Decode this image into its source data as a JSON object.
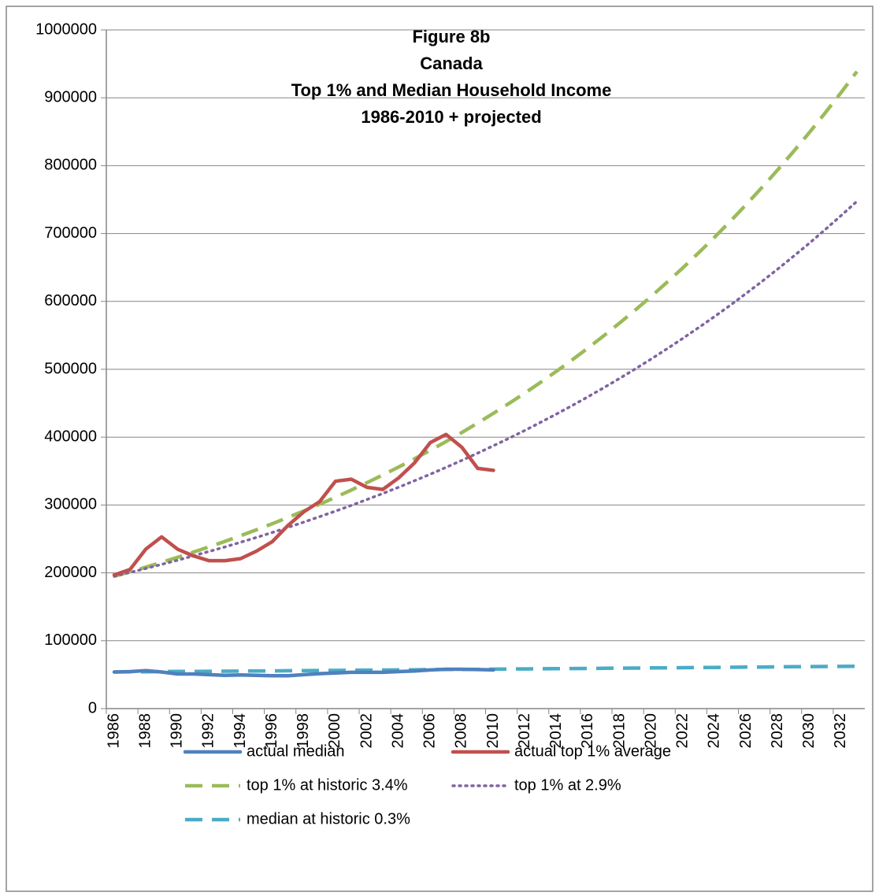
{
  "chart_data": {
    "type": "line",
    "title": [
      "Figure 8b",
      "Canada",
      "Top 1% and Median Household Income",
      "1986-2010 + projected"
    ],
    "categories": [
      "1986",
      null,
      "1988",
      null,
      "1990",
      null,
      "1992",
      null,
      "1994",
      null,
      "1996",
      null,
      "1998",
      null,
      "2000",
      null,
      "2002",
      null,
      "2004",
      null,
      "2006",
      null,
      "2008",
      null,
      "2010",
      null,
      "2012",
      null,
      "2014",
      null,
      "2016",
      null,
      "2018",
      null,
      "2020",
      null,
      "2022",
      null,
      "2024",
      null,
      "2026",
      null,
      "2028",
      null,
      "2030",
      null,
      "2032",
      null
    ],
    "ylim": [
      0,
      1000000
    ],
    "yticks": [
      0,
      100000,
      200000,
      300000,
      400000,
      500000,
      600000,
      700000,
      800000,
      900000,
      1000000
    ],
    "grid": true,
    "legend": "bottom",
    "series": [
      {
        "name": "actual median",
        "color": "#4f81bd",
        "style": "solid",
        "values": [
          54000,
          54500,
          56000,
          54000,
          51000,
          51000,
          50000,
          49000,
          49500,
          49000,
          48500,
          48500,
          50000,
          51500,
          52500,
          53500,
          53500,
          53500,
          54500,
          55500,
          57000,
          58000,
          58000,
          57500,
          57000,
          null,
          null,
          null,
          null,
          null,
          null,
          null,
          null,
          null,
          null,
          null,
          null,
          null,
          null,
          null,
          null,
          null,
          null,
          null,
          null,
          null,
          null,
          null
        ]
      },
      {
        "name": "actual top 1% average",
        "color": "#c0504d",
        "style": "solid",
        "values": [
          197000,
          205000,
          235000,
          253000,
          235000,
          225000,
          218000,
          218000,
          221000,
          232000,
          246000,
          270000,
          290000,
          305000,
          335000,
          338000,
          326000,
          323000,
          340000,
          362000,
          392000,
          404000,
          385000,
          354000,
          351000,
          null,
          null,
          null,
          null,
          null,
          null,
          null,
          null,
          null,
          null,
          null,
          null,
          null,
          null,
          null,
          null,
          null,
          null,
          null,
          null,
          null,
          null,
          null
        ]
      },
      {
        "name": "top 1% at historic 3.4%",
        "color": "#9bbb59",
        "style": "dash",
        "values": [
          195000,
          201600,
          208500,
          215600,
          222900,
          230500,
          238300,
          246400,
          254800,
          263500,
          272400,
          281700,
          291300,
          301200,
          311400,
          322000,
          332900,
          344300,
          356000,
          368100,
          380600,
          393500,
          406900,
          420800,
          435100,
          449900,
          465200,
          481000,
          497300,
          514200,
          531700,
          549800,
          568500,
          587800,
          607800,
          628500,
          649800,
          671900,
          694800,
          718400,
          742800,
          768100,
          794200,
          821200,
          849100,
          878000,
          907800,
          938700
        ]
      },
      {
        "name": "top 1% at 2.9%",
        "color": "#8064a2",
        "style": "dot",
        "values": [
          195000,
          200700,
          206500,
          212500,
          218600,
          225000,
          231500,
          238200,
          245100,
          252200,
          259500,
          267100,
          274800,
          282800,
          291000,
          299400,
          308100,
          317000,
          326200,
          335700,
          345400,
          355400,
          365800,
          376400,
          387300,
          398500,
          410100,
          422000,
          434200,
          446800,
          459700,
          473100,
          486800,
          500900,
          515400,
          530400,
          545800,
          561600,
          577900,
          594600,
          611900,
          629600,
          647900,
          666700,
          686000,
          705900,
          726400,
          747400
        ]
      },
      {
        "name": "median at historic 0.3%",
        "color": "#4bacc6",
        "style": "dash",
        "values": [
          54000,
          54200,
          54300,
          54500,
          54700,
          54800,
          55000,
          55100,
          55300,
          55500,
          55600,
          55800,
          56000,
          56200,
          56300,
          56500,
          56700,
          56900,
          57000,
          57200,
          57400,
          57600,
          57800,
          57900,
          58100,
          58300,
          58500,
          58700,
          58800,
          59000,
          59200,
          59400,
          59600,
          59800,
          60000,
          60100,
          60300,
          60500,
          60700,
          60900,
          61100,
          61300,
          61500,
          61700,
          61900,
          62100,
          62200,
          62400
        ]
      }
    ]
  }
}
